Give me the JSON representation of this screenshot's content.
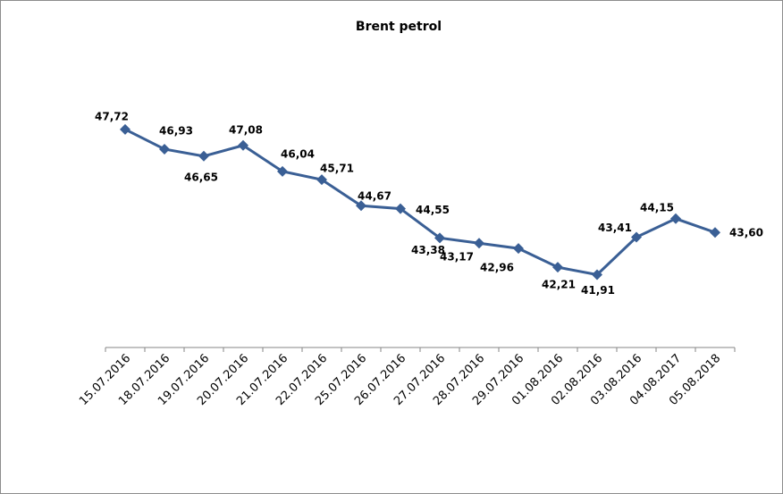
{
  "chart_data": {
    "type": "line",
    "title": "Brent petrol",
    "categories": [
      "15.07.2016",
      "18.07.2016",
      "19.07.2016",
      "20.07.2016",
      "21.07.2016",
      "22.07.2016",
      "25.07.2016",
      "26.07.2016",
      "27.07.2016",
      "28.07.2016",
      "29.07.2016",
      "01.08.2016",
      "02.08.2016",
      "03.08.2016",
      "04.08.2017",
      "05.08.2018"
    ],
    "series": [
      {
        "name": "Brent petrol",
        "color": "#3a5f95",
        "values": [
          47.72,
          46.93,
          46.65,
          47.08,
          46.04,
          45.71,
          44.67,
          44.55,
          43.38,
          43.17,
          42.96,
          42.21,
          41.91,
          43.41,
          44.15,
          43.6
        ],
        "value_labels": [
          "47,72",
          "46,93",
          "46,65",
          "47,08",
          "46,04",
          "45,71",
          "44,67",
          "44,55",
          "43,38",
          "43,17",
          "42,96",
          "42,21",
          "41,91",
          "43,41",
          "44,15",
          "43,60"
        ]
      }
    ],
    "ylim": [
      39,
      49
    ]
  }
}
